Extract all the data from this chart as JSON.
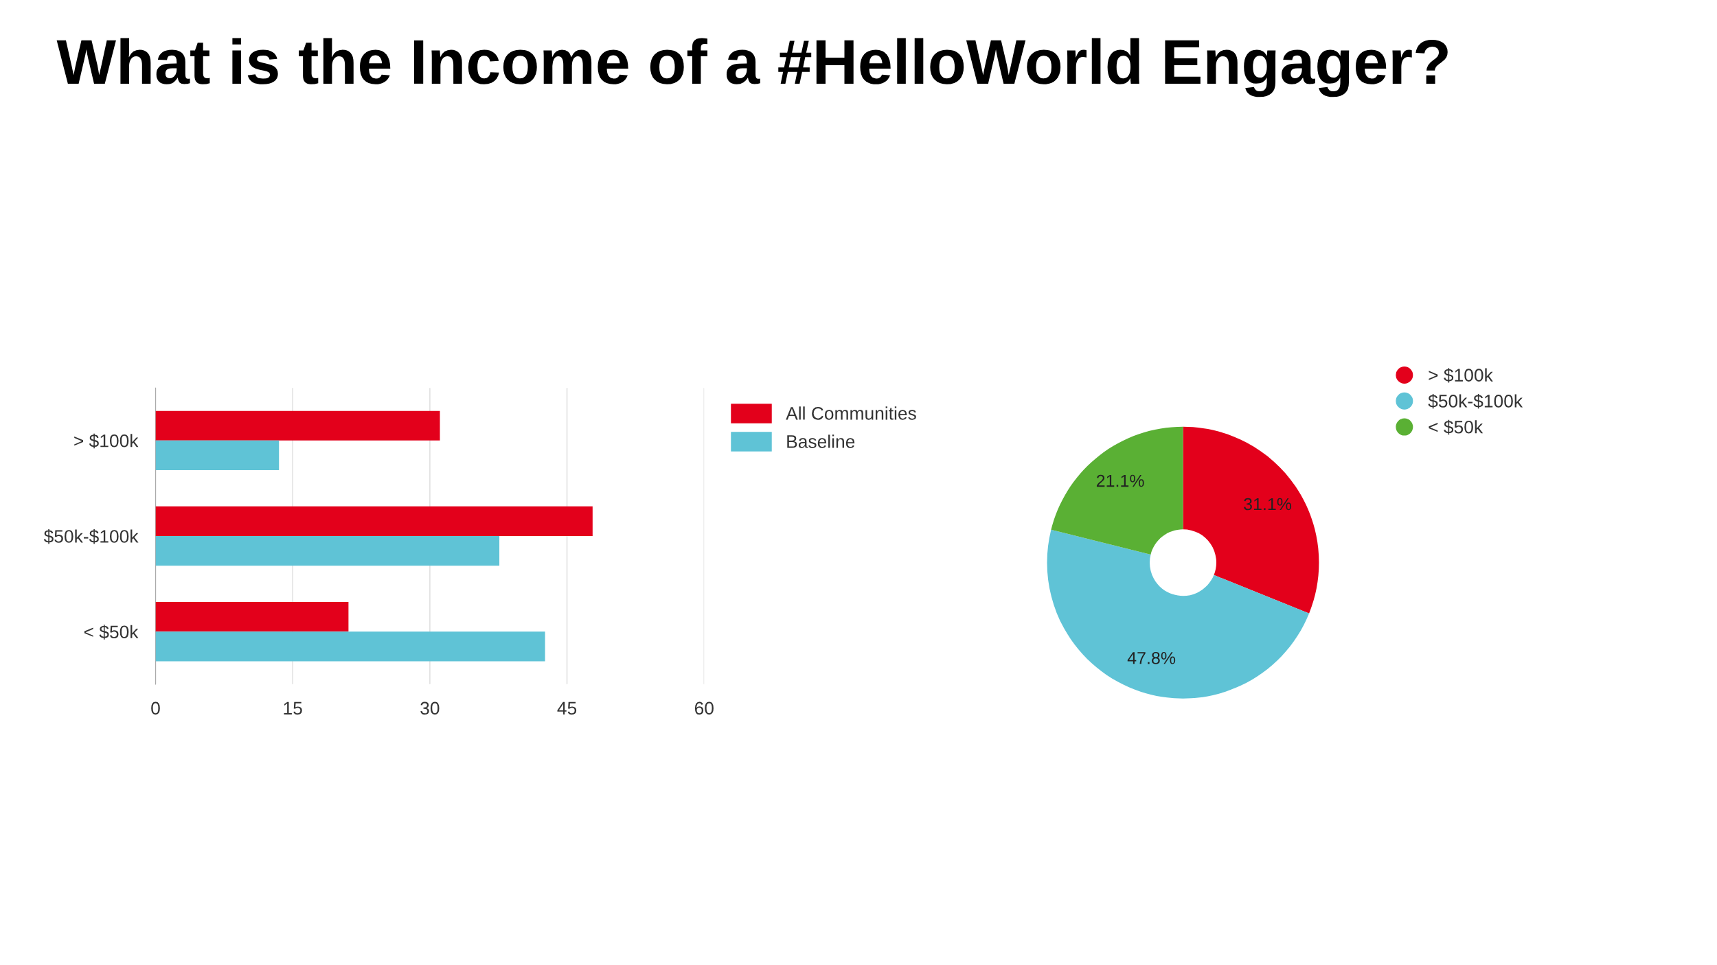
{
  "chart_data": [
    {
      "type": "bar",
      "orientation": "horizontal",
      "title": "What is the Income of a #HelloWorld Engager?",
      "categories": [
        "> $100k",
        "$50k-$100k",
        "< $50k"
      ],
      "series": [
        {
          "name": "All Communities",
          "color": "#e3001b",
          "values": [
            31.1,
            47.8,
            21.1
          ]
        },
        {
          "name": "Baseline",
          "color": "#5fc3d6",
          "values": [
            13.5,
            37.6,
            42.6
          ]
        }
      ],
      "xlim": [
        0,
        60
      ],
      "xticks": [
        0,
        15,
        30,
        45,
        60
      ],
      "grid": "x",
      "legend": "top right"
    },
    {
      "type": "donut",
      "categories": [
        "> $100k",
        "$50k-$100k",
        "< $50k"
      ],
      "values": [
        31.1,
        47.8,
        21.1
      ],
      "colors": [
        "#e3001b",
        "#5fc3d6",
        "#5ab034"
      ],
      "value_labels": [
        "31.1%",
        "47.8%",
        "21.1%"
      ],
      "legend": "top right"
    }
  ]
}
